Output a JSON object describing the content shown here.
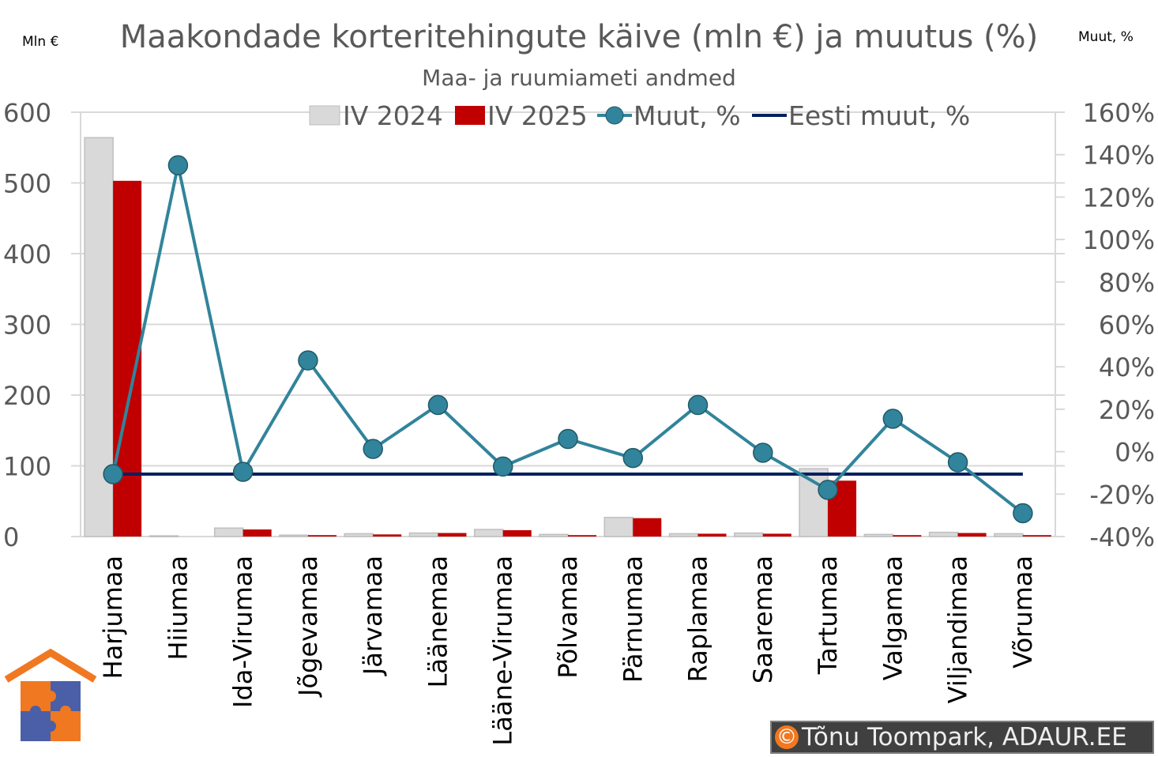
{
  "chart_data": {
    "type": "bar+line",
    "title": "Maakondade korteritehingute käive (mln €) ja muutus (%)",
    "subtitle": "Maa- ja ruumiameti andmed",
    "ylabel_left": "Mln €",
    "ylabel_right": "Muut, %",
    "ylim_left": [
      0,
      600
    ],
    "yticks_left": [
      "0",
      "100",
      "200",
      "300",
      "400",
      "500",
      "600"
    ],
    "ylim_right": [
      -40,
      160
    ],
    "yticks_right": [
      "-40%",
      "-20%",
      "0%",
      "20%",
      "40%",
      "60%",
      "80%",
      "100%",
      "120%",
      "140%",
      "160%"
    ],
    "grid": true,
    "legend": "top",
    "categories": [
      "Harjumaa",
      "Hiiumaa",
      "Ida-Virumaa",
      "Jõgevamaa",
      "Järvamaa",
      "Läänemaa",
      "Lääne-Virumaa",
      "Põlvamaa",
      "Pärnumaa",
      "Raplamaa",
      "Saaremaa",
      "Tartumaa",
      "Valgamaa",
      "Viljandimaa",
      "Võrumaa"
    ],
    "series": [
      {
        "name": "IV 2024",
        "type": "bar",
        "axis": "left",
        "color": "#d9d9d9",
        "values": [
          564,
          1,
          12,
          2,
          4,
          5,
          10,
          3,
          27,
          4,
          5,
          96,
          3,
          6,
          4
        ]
      },
      {
        "name": "IV 2025",
        "type": "bar",
        "axis": "left",
        "color": "#c00000",
        "values": [
          503,
          0,
          10,
          2,
          3,
          5,
          9,
          2,
          26,
          4,
          4,
          79,
          2,
          5,
          2
        ]
      },
      {
        "name": "Muut, %",
        "type": "line",
        "axis": "right",
        "color": "#31849b",
        "values": [
          -10.6,
          135,
          -9.5,
          43,
          1.3,
          22,
          -7,
          6,
          -3,
          22,
          -0.5,
          -18,
          15.5,
          -5,
          -29
        ]
      },
      {
        "name": "Eesti muut, %",
        "type": "line",
        "axis": "right",
        "color": "#002060",
        "values": [
          -10.6,
          -10.6,
          -10.6,
          -10.6,
          -10.6,
          -10.6,
          -10.6,
          -10.6,
          -10.6,
          -10.6,
          -10.6,
          -10.6,
          -10.6,
          -10.6,
          -10.6
        ]
      }
    ]
  },
  "credit": {
    "symbol": "©",
    "text": "Tõnu Toompark, ADAUR.EE"
  }
}
